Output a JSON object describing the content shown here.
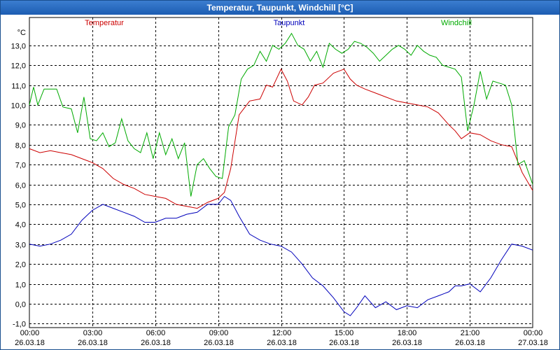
{
  "window": {
    "title": "Temperatur, Taupunkt, Windchill [°C]"
  },
  "colors": {
    "temperatur": "#cc0000",
    "taupunkt": "#0000bb",
    "windchill": "#00aa00",
    "grid": "#000000",
    "title_bg": "#2a6cc4"
  },
  "chart_data": {
    "type": "line",
    "title": "Temperatur, Taupunkt, Windchill [°C]",
    "ylabel": "°C",
    "xlabel": "",
    "ylim": [
      -1.2,
      14.4
    ],
    "xlim": [
      0,
      24
    ],
    "y_ticks": [
      "-1,0",
      "0,0",
      "1,0",
      "2,0",
      "3,0",
      "4,0",
      "5,0",
      "6,0",
      "7,0",
      "8,0",
      "9,0",
      "10,0",
      "11,0",
      "12,0",
      "13,0"
    ],
    "x_ticks": [
      {
        "time": "00:00",
        "date": "26.03.18"
      },
      {
        "time": "03:00",
        "date": "26.03.18"
      },
      {
        "time": "06:00",
        "date": "26.03.18"
      },
      {
        "time": "09:00",
        "date": "26.03.18"
      },
      {
        "time": "12:00",
        "date": "26.03.18"
      },
      {
        "time": "15:00",
        "date": "26.03.18"
      },
      {
        "time": "18:00",
        "date": "26.03.18"
      },
      {
        "time": "21:00",
        "date": "26.03.18"
      },
      {
        "time": "00:00",
        "date": "27.03.18"
      }
    ],
    "grid": true,
    "legend_placement": "top",
    "series": [
      {
        "name": "Temperatur",
        "x": [
          0,
          0.5,
          1,
          1.5,
          2,
          2.5,
          3,
          3.5,
          4,
          4.5,
          5,
          5.5,
          6,
          6.5,
          7,
          7.5,
          8,
          8.5,
          9,
          9.3,
          9.6,
          10,
          10.5,
          11,
          11.3,
          11.6,
          12,
          12.3,
          12.6,
          13,
          13.3,
          13.6,
          14,
          14.5,
          15,
          15.3,
          15.6,
          16,
          16.5,
          17,
          17.5,
          18,
          18.5,
          19,
          19.5,
          20,
          20.3,
          20.6,
          21,
          21.5,
          22,
          22.5,
          23,
          23.5,
          24
        ],
        "values": [
          7.8,
          7.6,
          7.7,
          7.6,
          7.5,
          7.3,
          7.1,
          6.8,
          6.3,
          6.0,
          5.8,
          5.5,
          5.4,
          5.3,
          5.0,
          4.9,
          4.8,
          5.1,
          5.3,
          5.6,
          6.8,
          9.5,
          10.2,
          10.3,
          11.0,
          10.9,
          11.8,
          11.2,
          10.2,
          10.0,
          10.4,
          11.0,
          11.1,
          11.6,
          11.8,
          11.3,
          11.0,
          10.8,
          10.6,
          10.4,
          10.2,
          10.1,
          10.0,
          9.9,
          9.6,
          9.0,
          8.7,
          8.3,
          8.6,
          8.5,
          8.2,
          8.0,
          7.9,
          6.6,
          5.7
        ]
      },
      {
        "name": "Taupunkt",
        "x": [
          0,
          0.5,
          1,
          1.5,
          2,
          2.5,
          3,
          3.5,
          4,
          4.5,
          5,
          5.5,
          6,
          6.5,
          7,
          7.5,
          8,
          8.5,
          9,
          9.3,
          9.6,
          10,
          10.5,
          11,
          11.5,
          12,
          12.5,
          13,
          13.5,
          14,
          14.5,
          15,
          15.3,
          15.6,
          16,
          16.5,
          17,
          17.5,
          18,
          18.5,
          19,
          19.5,
          20,
          20.3,
          20.6,
          21,
          21.5,
          22,
          22.5,
          23,
          23.5,
          24
        ],
        "values": [
          3.0,
          2.9,
          3.0,
          3.2,
          3.5,
          4.2,
          4.7,
          5.0,
          4.8,
          4.6,
          4.4,
          4.1,
          4.1,
          4.3,
          4.3,
          4.5,
          4.6,
          5.0,
          5.0,
          5.4,
          5.2,
          4.4,
          3.5,
          3.2,
          3.0,
          2.9,
          2.6,
          2.0,
          1.3,
          0.9,
          0.3,
          -0.4,
          -0.6,
          -0.2,
          0.4,
          -0.2,
          0.1,
          -0.3,
          -0.1,
          -0.2,
          0.2,
          0.4,
          0.6,
          0.9,
          0.9,
          1.0,
          0.6,
          1.3,
          2.2,
          3.0,
          2.9,
          2.7
        ]
      },
      {
        "name": "Windchill",
        "x": [
          0,
          0.2,
          0.4,
          0.7,
          1,
          1.3,
          1.6,
          2,
          2.3,
          2.6,
          2.9,
          3.2,
          3.5,
          3.8,
          4.1,
          4.4,
          4.7,
          5,
          5.3,
          5.6,
          5.9,
          6.2,
          6.5,
          6.8,
          7.1,
          7.4,
          7.7,
          8,
          8.3,
          8.6,
          8.9,
          9.2,
          9.5,
          9.8,
          10.1,
          10.4,
          10.7,
          11,
          11.3,
          11.6,
          11.9,
          12.2,
          12.5,
          12.8,
          13.1,
          13.4,
          13.7,
          14,
          14.3,
          14.6,
          14.9,
          15.2,
          15.5,
          15.8,
          16.1,
          16.4,
          16.7,
          17,
          17.3,
          17.6,
          17.9,
          18.2,
          18.5,
          18.8,
          19.1,
          19.4,
          19.7,
          20,
          20.3,
          20.6,
          20.9,
          21.2,
          21.5,
          21.8,
          22.1,
          22.4,
          22.7,
          23,
          23.3,
          23.6,
          24
        ],
        "values": [
          10.0,
          10.9,
          10.0,
          10.8,
          10.8,
          10.8,
          9.9,
          9.8,
          8.6,
          10.4,
          8.3,
          8.2,
          8.6,
          7.9,
          8.1,
          9.3,
          8.2,
          7.8,
          7.6,
          8.6,
          7.3,
          8.6,
          7.5,
          8.3,
          7.3,
          8.1,
          5.4,
          7.0,
          7.3,
          6.8,
          6.4,
          6.3,
          8.9,
          9.5,
          11.3,
          11.8,
          12.0,
          12.7,
          12.2,
          13.0,
          12.8,
          13.1,
          13.6,
          13.0,
          12.8,
          12.2,
          12.7,
          11.9,
          13.1,
          12.8,
          12.6,
          12.8,
          13.2,
          13.1,
          12.9,
          12.6,
          12.2,
          12.5,
          12.8,
          13.0,
          12.8,
          12.5,
          13.0,
          12.7,
          12.5,
          12.4,
          12.0,
          11.9,
          11.8,
          11.4,
          8.7,
          10.0,
          11.7,
          10.3,
          11.2,
          11.1,
          11.0,
          10.0,
          7.0,
          7.2,
          6.0
        ]
      }
    ]
  }
}
